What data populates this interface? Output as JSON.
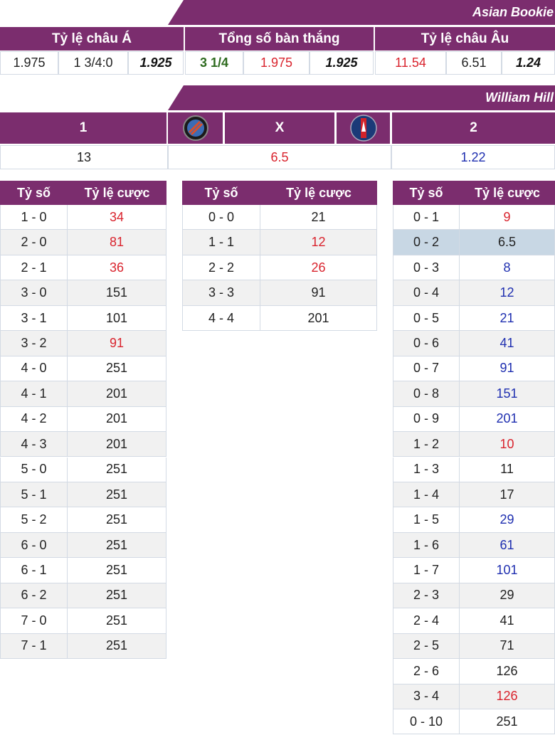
{
  "asian_bookie": {
    "title": "Asian Bookie",
    "groups": [
      {
        "title": "Tỷ lệ châu Á",
        "cells": [
          {
            "text": 1.975,
            "color": "#222222",
            "style": "normal"
          },
          {
            "text": "1 3/4:0",
            "color": "#222222",
            "style": "normal"
          },
          {
            "text": 1.925,
            "color": "#111111",
            "style": "bold-italic"
          }
        ]
      },
      {
        "title": "Tổng số bàn thắng",
        "cells": [
          {
            "text": "3 1/4",
            "color": "#2e6b1f",
            "style": "bold"
          },
          {
            "text": 1.975,
            "color": "#d9232d",
            "style": "normal"
          },
          {
            "text": 1.925,
            "color": "#111111",
            "style": "bold-italic"
          }
        ]
      },
      {
        "title": "Tỷ lệ châu Âu",
        "cells": [
          {
            "text": 11.54,
            "color": "#d9232d",
            "style": "normal"
          },
          {
            "text": 6.51,
            "color": "#222222",
            "style": "normal"
          },
          {
            "text": 1.24,
            "color": "#111111",
            "style": "bold-italic"
          }
        ]
      }
    ]
  },
  "william_hill": {
    "title": "William Hill",
    "outcomes": [
      {
        "label": "1",
        "odds": 13,
        "color": "#222222"
      },
      {
        "label": "X",
        "odds": 6.5,
        "color": "#d9232d"
      },
      {
        "label": "2",
        "odds": 1.22,
        "color": "#1f2fb0"
      }
    ]
  },
  "score_tables": [
    {
      "headers": [
        "Tỷ số",
        "Tỷ lệ cược"
      ],
      "rows": [
        {
          "score": "1 - 0",
          "odds": 34,
          "color": "#d9232d"
        },
        {
          "score": "2 - 0",
          "odds": 81,
          "color": "#d9232d"
        },
        {
          "score": "2 - 1",
          "odds": 36,
          "color": "#d9232d"
        },
        {
          "score": "3 - 0",
          "odds": 151,
          "color": "#222222"
        },
        {
          "score": "3 - 1",
          "odds": 101,
          "color": "#222222"
        },
        {
          "score": "3 - 2",
          "odds": 91,
          "color": "#d9232d"
        },
        {
          "score": "4 - 0",
          "odds": 251,
          "color": "#222222"
        },
        {
          "score": "4 - 1",
          "odds": 201,
          "color": "#222222"
        },
        {
          "score": "4 - 2",
          "odds": 201,
          "color": "#222222"
        },
        {
          "score": "4 - 3",
          "odds": 201,
          "color": "#222222"
        },
        {
          "score": "5 - 0",
          "odds": 251,
          "color": "#222222"
        },
        {
          "score": "5 - 1",
          "odds": 251,
          "color": "#222222"
        },
        {
          "score": "5 - 2",
          "odds": 251,
          "color": "#222222"
        },
        {
          "score": "6 - 0",
          "odds": 251,
          "color": "#222222"
        },
        {
          "score": "6 - 1",
          "odds": 251,
          "color": "#222222"
        },
        {
          "score": "6 - 2",
          "odds": 251,
          "color": "#222222"
        },
        {
          "score": "7 - 0",
          "odds": 251,
          "color": "#222222"
        },
        {
          "score": "7 - 1",
          "odds": 251,
          "color": "#222222"
        }
      ]
    },
    {
      "headers": [
        "Tỷ số",
        "Tỷ lệ cược"
      ],
      "rows": [
        {
          "score": "0 - 0",
          "odds": 21,
          "color": "#222222"
        },
        {
          "score": "1 - 1",
          "odds": 12,
          "color": "#d9232d"
        },
        {
          "score": "2 - 2",
          "odds": 26,
          "color": "#d9232d"
        },
        {
          "score": "3 - 3",
          "odds": 91,
          "color": "#222222"
        },
        {
          "score": "4 - 4",
          "odds": 201,
          "color": "#222222"
        }
      ]
    },
    {
      "headers": [
        "Tỷ số",
        "Tỷ lệ cược"
      ],
      "rows": [
        {
          "score": "0 - 1",
          "odds": 9,
          "color": "#d9232d"
        },
        {
          "score": "0 - 2",
          "odds": 6.5,
          "color": "#222222",
          "highlight": true
        },
        {
          "score": "0 - 3",
          "odds": 8,
          "color": "#1f2fb0"
        },
        {
          "score": "0 - 4",
          "odds": 12,
          "color": "#1f2fb0"
        },
        {
          "score": "0 - 5",
          "odds": 21,
          "color": "#1f2fb0"
        },
        {
          "score": "0 - 6",
          "odds": 41,
          "color": "#1f2fb0"
        },
        {
          "score": "0 - 7",
          "odds": 91,
          "color": "#1f2fb0"
        },
        {
          "score": "0 - 8",
          "odds": 151,
          "color": "#1f2fb0"
        },
        {
          "score": "0 - 9",
          "odds": 201,
          "color": "#1f2fb0"
        },
        {
          "score": "1 - 2",
          "odds": 10,
          "color": "#d9232d"
        },
        {
          "score": "1 - 3",
          "odds": 11,
          "color": "#222222"
        },
        {
          "score": "1 - 4",
          "odds": 17,
          "color": "#222222"
        },
        {
          "score": "1 - 5",
          "odds": 29,
          "color": "#1f2fb0"
        },
        {
          "score": "1 - 6",
          "odds": 61,
          "color": "#1f2fb0"
        },
        {
          "score": "1 - 7",
          "odds": 101,
          "color": "#1f2fb0"
        },
        {
          "score": "2 - 3",
          "odds": 29,
          "color": "#222222"
        },
        {
          "score": "2 - 4",
          "odds": 41,
          "color": "#222222"
        },
        {
          "score": "2 - 5",
          "odds": 71,
          "color": "#222222"
        },
        {
          "score": "2 - 6",
          "odds": 126,
          "color": "#222222"
        },
        {
          "score": "3 - 4",
          "odds": 126,
          "color": "#d9232d"
        },
        {
          "score": "0 - 10",
          "odds": 251,
          "color": "#222222"
        }
      ]
    }
  ]
}
